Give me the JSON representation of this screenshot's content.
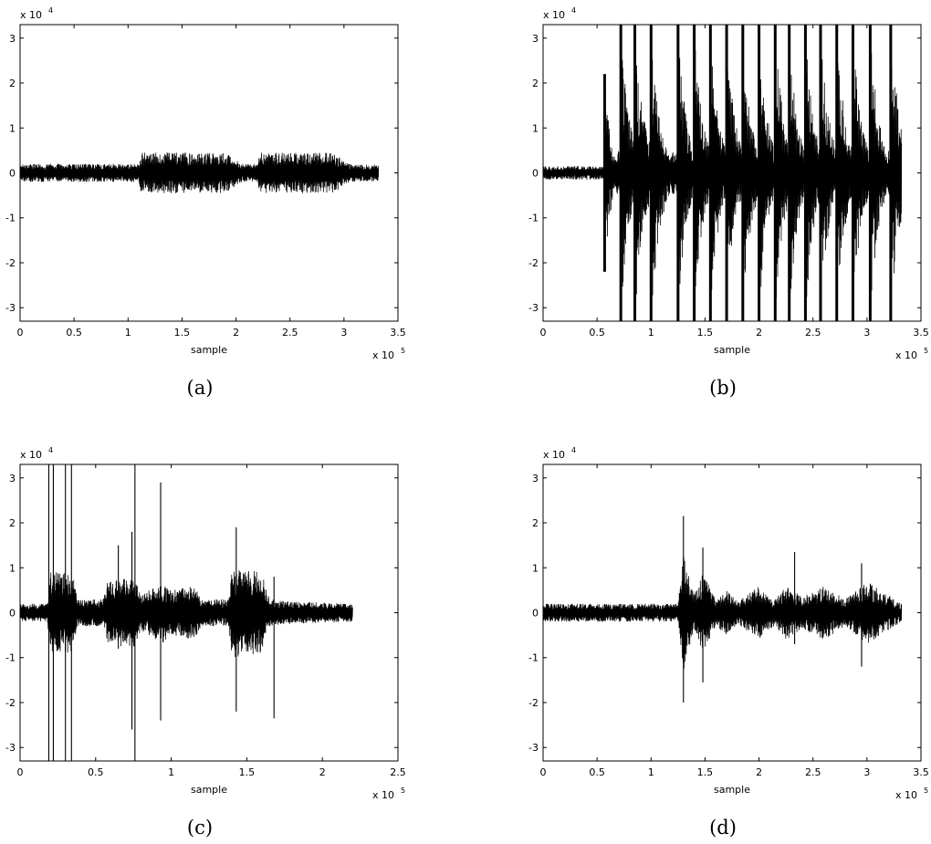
{
  "chart_data": [
    {
      "panel": "a",
      "caption": "(a)",
      "type": "line",
      "xlabel": "sample",
      "x_exponent_label": "x 10",
      "x_exponent": "5",
      "y_exponent_label": "x 10",
      "y_exponent": "4",
      "xlim": [
        0,
        350000
      ],
      "ylim": [
        -33000,
        33000
      ],
      "xticks": [
        0,
        0.5,
        1,
        1.5,
        2,
        2.5,
        3,
        3.5
      ],
      "xtick_labels": [
        "0",
        "0.5",
        "1",
        "1.5",
        "2",
        "2.5",
        "3",
        "3.5"
      ],
      "yticks": [
        -3,
        -2,
        -1,
        0,
        1,
        2,
        3
      ],
      "ytick_labels": [
        "-3",
        "-2",
        "-1",
        "0",
        "1",
        "2",
        "3"
      ],
      "signal_length": 332000,
      "envelope": {
        "x": [
          0,
          110000,
          112000,
          190000,
          205000,
          220000,
          222000,
          290000,
          305000,
          332000
        ],
        "amplitude": [
          2000,
          2000,
          4500,
          4500,
          2000,
          2000,
          4500,
          4500,
          2000,
          1800
        ]
      },
      "spikes": []
    },
    {
      "panel": "b",
      "caption": "(b)",
      "type": "line",
      "xlabel": "sample",
      "x_exponent_label": "x 10",
      "x_exponent": "5",
      "y_exponent_label": "x 10",
      "y_exponent": "4",
      "xlim": [
        0,
        350000
      ],
      "ylim": [
        -33000,
        33000
      ],
      "xticks": [
        0,
        0.5,
        1,
        1.5,
        2,
        2.5,
        3,
        3.5
      ],
      "xtick_labels": [
        "0",
        "0.5",
        "1",
        "1.5",
        "2",
        "2.5",
        "3",
        "3.5"
      ],
      "yticks": [
        -3,
        -2,
        -1,
        0,
        1,
        2,
        3
      ],
      "ytick_labels": [
        "-3",
        "-2",
        "-1",
        "0",
        "1",
        "2",
        "3"
      ],
      "signal_length": 332000,
      "envelope": {
        "x": [
          0,
          55000,
          60000,
          70000,
          332000
        ],
        "amplitude": [
          1500,
          1500,
          3000,
          5000,
          5000
        ]
      },
      "bursts": [
        {
          "x": 57000,
          "peak": 22000,
          "width": 6000
        },
        {
          "x": 72000,
          "peak": 33000,
          "width": 8000
        },
        {
          "x": 85000,
          "peak": 33000,
          "width": 9000
        },
        {
          "x": 100000,
          "peak": 33000,
          "width": 9000
        },
        {
          "x": 125000,
          "peak": 33000,
          "width": 8000
        },
        {
          "x": 140000,
          "peak": 33000,
          "width": 8000
        },
        {
          "x": 155000,
          "peak": 33000,
          "width": 8000
        },
        {
          "x": 170000,
          "peak": 33000,
          "width": 8000
        },
        {
          "x": 185000,
          "peak": 33000,
          "width": 8000
        },
        {
          "x": 200000,
          "peak": 33000,
          "width": 8000
        },
        {
          "x": 215000,
          "peak": 33000,
          "width": 8000
        },
        {
          "x": 228000,
          "peak": 33000,
          "width": 8000
        },
        {
          "x": 243000,
          "peak": 33000,
          "width": 8000
        },
        {
          "x": 257000,
          "peak": 33000,
          "width": 8000
        },
        {
          "x": 272000,
          "peak": 33000,
          "width": 8000
        },
        {
          "x": 287000,
          "peak": 33000,
          "width": 8000
        },
        {
          "x": 303000,
          "peak": 33000,
          "width": 8000
        },
        {
          "x": 322000,
          "peak": 33000,
          "width": 9000
        }
      ]
    },
    {
      "panel": "c",
      "caption": "(c)",
      "type": "line",
      "xlabel": "sample",
      "x_exponent_label": "x 10",
      "x_exponent": "5",
      "y_exponent_label": "x 10",
      "y_exponent": "4",
      "xlim": [
        0,
        250000
      ],
      "ylim": [
        -33000,
        33000
      ],
      "xticks": [
        0,
        0.5,
        1,
        1.5,
        2,
        2.5
      ],
      "xtick_labels": [
        "0",
        "0.5",
        "1",
        "1.5",
        "2",
        "2.5"
      ],
      "yticks": [
        -3,
        -2,
        -1,
        0,
        1,
        2,
        3
      ],
      "ytick_labels": [
        "-3",
        "-2",
        "-1",
        "0",
        "1",
        "2",
        "3"
      ],
      "signal_length": 220000,
      "envelope": {
        "x": [
          0,
          18000,
          20000,
          35000,
          38000,
          55000,
          58000,
          75000,
          80000,
          95000,
          98000,
          115000,
          120000,
          138000,
          140000,
          160000,
          165000,
          180000,
          220000
        ],
        "amplitude": [
          2000,
          2000,
          9000,
          9000,
          3000,
          3000,
          7000,
          8000,
          4000,
          7000,
          5000,
          6000,
          3000,
          3000,
          10000,
          9000,
          3000,
          2500,
          2000
        ]
      },
      "spikes": [
        {
          "x": 19000,
          "top": 33000,
          "bottom": -33000
        },
        {
          "x": 22000,
          "top": 33000,
          "bottom": -33000
        },
        {
          "x": 30000,
          "top": 33000,
          "bottom": -33000
        },
        {
          "x": 34000,
          "top": 33000,
          "bottom": -33000
        },
        {
          "x": 65000,
          "top": 15000,
          "bottom": -8000
        },
        {
          "x": 74000,
          "top": 18000,
          "bottom": -26000
        },
        {
          "x": 76000,
          "top": 33000,
          "bottom": -33000
        },
        {
          "x": 93000,
          "top": 29000,
          "bottom": -24000
        },
        {
          "x": 143000,
          "top": 19000,
          "bottom": -22000
        },
        {
          "x": 168000,
          "top": 8000,
          "bottom": -23500
        }
      ]
    },
    {
      "panel": "d",
      "caption": "(d)",
      "type": "line",
      "xlabel": "sample",
      "x_exponent_label": "x 10",
      "x_exponent": "5",
      "y_exponent_label": "x 10",
      "y_exponent": "4",
      "xlim": [
        0,
        350000
      ],
      "ylim": [
        -33000,
        33000
      ],
      "xticks": [
        0,
        0.5,
        1,
        1.5,
        2,
        2.5,
        3,
        3.5
      ],
      "xtick_labels": [
        "0",
        "0.5",
        "1",
        "1.5",
        "2",
        "2.5",
        "3",
        "3.5"
      ],
      "yticks": [
        -3,
        -2,
        -1,
        0,
        1,
        2,
        3
      ],
      "ytick_labels": [
        "-3",
        "-2",
        "-1",
        "0",
        "1",
        "2",
        "3"
      ],
      "signal_length": 332000,
      "envelope": {
        "x": [
          0,
          125000,
          130000,
          140000,
          148000,
          160000,
          170000,
          180000,
          200000,
          215000,
          225000,
          240000,
          260000,
          280000,
          300000,
          332000
        ],
        "amplitude": [
          2000,
          2000,
          13000,
          4000,
          9000,
          3000,
          5000,
          2500,
          6000,
          3000,
          6000,
          3500,
          6000,
          3000,
          7000,
          2000
        ]
      },
      "spikes": [
        {
          "x": 130000,
          "top": 21500,
          "bottom": -20000
        },
        {
          "x": 148000,
          "top": 14500,
          "bottom": -15500
        },
        {
          "x": 233000,
          "top": 13500,
          "bottom": -7000
        },
        {
          "x": 295000,
          "top": 11000,
          "bottom": -12000
        }
      ]
    }
  ]
}
